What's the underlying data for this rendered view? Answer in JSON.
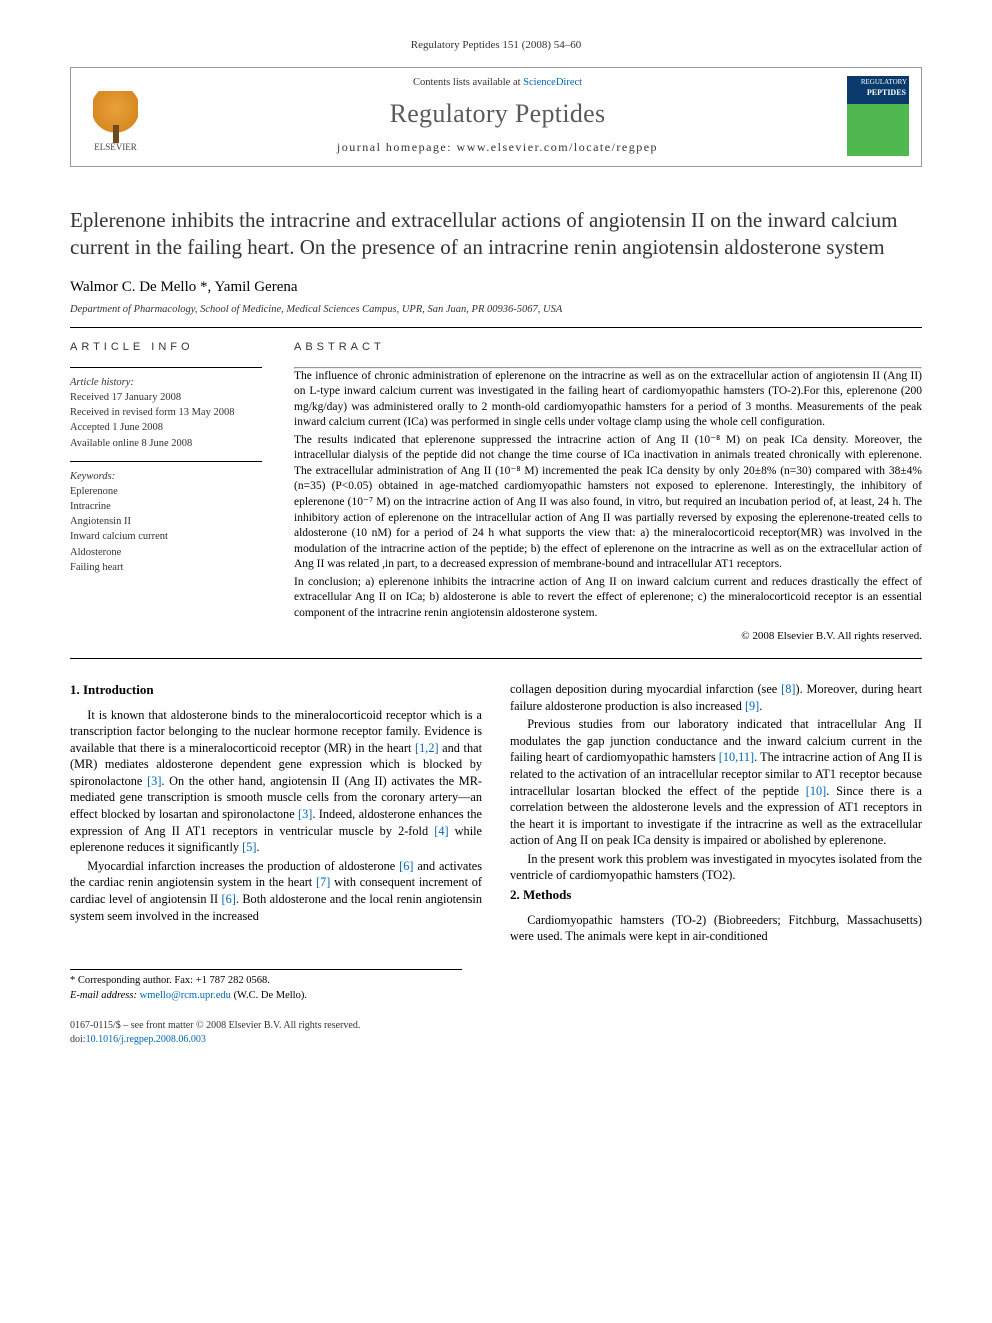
{
  "pageHeader": "Regulatory Peptides 151 (2008) 54–60",
  "journalBox": {
    "contentsLine": "Contents lists available at ",
    "contentsLink": "ScienceDirect",
    "journalName": "Regulatory Peptides",
    "homepageLabel": "journal homepage: www.elsevier.com/locate/regpep",
    "elsevierLabel": "ELSEVIER",
    "coverTopText": "REGULATORY"
  },
  "article": {
    "title": "Eplerenone inhibits the intracrine and extracellular actions of angiotensin II on the inward calcium current in the failing heart. On the presence of an intracrine renin angiotensin aldosterone system",
    "authors": "Walmor C. De Mello *, Yamil Gerena",
    "affiliation": "Department of Pharmacology, School of Medicine, Medical Sciences Campus, UPR, San Juan, PR 00936-5067, USA"
  },
  "info": {
    "heading": "ARTICLE INFO",
    "historyLabel": "Article history:",
    "history": [
      "Received 17 January 2008",
      "Received in revised form 13 May 2008",
      "Accepted 1 June 2008",
      "Available online 8 June 2008"
    ],
    "keywordsLabel": "Keywords:",
    "keywords": [
      "Eplerenone",
      "Intracrine",
      "Angiotensin II",
      "Inward calcium current",
      "Aldosterone",
      "Failing heart"
    ]
  },
  "abstract": {
    "heading": "ABSTRACT",
    "p1": "The influence of chronic administration of eplerenone on the intracrine as well as on the extracellular action of angiotensin II (Ang II) on L-type inward calcium current was investigated in the failing heart of cardiomyopathic hamsters (TO-2).For this, eplerenone (200 mg/kg/day) was administered orally to 2 month-old cardiomyopathic hamsters for a period of 3 months. Measurements of the peak inward calcium current (ICa) was performed in single cells under voltage clamp using the whole cell configuration.",
    "p2": "The results indicated that eplerenone suppressed the intracrine action of Ang II (10⁻⁸ M) on peak ICa density. Moreover, the intracellular dialysis of the peptide did not change the time course of ICa inactivation in animals treated chronically with eplerenone. The extracellular administration of Ang II (10⁻⁸ M) incremented the peak ICa density by only 20±8% (n=30) compared with 38±4% (n=35) (P<0.05) obtained in age-matched cardiomyopathic hamsters not exposed to eplerenone. Interestingly, the inhibitory of eplerenone (10⁻⁷ M) on the intracrine action of Ang II was also found, in vitro, but required an incubation period of, at least, 24 h. The inhibitory action of eplerenone on the intracellular action of Ang II was partially reversed by exposing the eplerenone-treated cells to aldosterone (10 nM) for a period of 24 h what supports the view that: a) the mineralocorticoid receptor(MR) was involved in the modulation of the intracrine action of the peptide; b) the effect of eplerenone on the intracrine as well as on the extracellular action of Ang II was related ,in part, to a decreased expression of membrane-bound and intracellular AT1 receptors.",
    "p3": "In conclusion; a) eplerenone inhibits the intracrine action of Ang II on inward calcium current and reduces drastically the effect of extracellular Ang II on ICa; b) aldosterone is able to revert the effect of eplerenone; c) the mineralocorticoid receptor is an essential component of the intracrine renin angiotensin aldosterone system.",
    "copyright": "© 2008 Elsevier B.V. All rights reserved."
  },
  "body": {
    "sec1Title": "1. Introduction",
    "sec1p1a": "It is known that aldosterone binds to the mineralocorticoid receptor which is a transcription factor belonging to the nuclear hormone receptor family. Evidence is available that there is a mineralocorticoid receptor (MR) in the heart ",
    "ref12": "[1,2]",
    "sec1p1b": " and that (MR) mediates aldosterone dependent gene expression which is blocked by spironolactone ",
    "ref3a": "[3]",
    "sec1p1c": ". On the other hand, angiotensin II (Ang II) activates the MR-mediated gene transcription is smooth muscle cells from the coronary artery—an effect blocked by losartan and spironolactone ",
    "ref3b": "[3]",
    "sec1p1d": ". Indeed, aldosterone enhances the expression of Ang II AT1 receptors in ventricular muscle by 2-fold ",
    "ref4": "[4]",
    "sec1p1e": " while eplerenone reduces it significantly ",
    "ref5": "[5]",
    "sec1p1f": ".",
    "sec1p2a": "Myocardial infarction increases the production of aldosterone ",
    "ref6a": "[6]",
    "sec1p2b": " and activates the cardiac renin angiotensin system in the heart ",
    "ref7": "[7]",
    "sec1p2c": " with consequent increment of cardiac level of angiotensin II ",
    "ref6b": "[6]",
    "sec1p2d": ". Both aldosterone and the local renin angiotensin system seem involved in the increased",
    "sec1p2e": "collagen deposition during myocardial infarction (see ",
    "ref8": "[8]",
    "sec1p2f": "). Moreover, during heart failure aldosterone production is also increased ",
    "ref9": "[9]",
    "sec1p2g": ".",
    "sec1p3a": "Previous studies from our laboratory indicated that intracellular Ang II modulates the gap junction conductance and the inward calcium current in the failing heart of cardiomyopathic hamsters ",
    "ref1011": "[10,11]",
    "sec1p3b": ". The intracrine action of Ang II is related to the activation of an intracellular receptor similar to AT1 receptor because intracellular losartan blocked the effect of the peptide ",
    "ref10": "[10]",
    "sec1p3c": ". Since there is a correlation between the aldosterone levels and the expression of AT1 receptors in the heart it is important to investigate if the intracrine as well as the extracellular action of Ang II on peak ICa density is impaired or abolished by eplerenone.",
    "sec1p4": "In the present work this problem was investigated in myocytes isolated from the ventricle of cardiomyopathic hamsters (TO2).",
    "sec2Title": "2. Methods",
    "sec2p1": "Cardiomyopathic hamsters (TO-2) (Biobreeders; Fitchburg, Massachusetts) were used. The animals were kept in air-conditioned"
  },
  "footnotes": {
    "corr": "* Corresponding author. Fax: +1 787 282 0568.",
    "emailLabel": "E-mail address: ",
    "email": "wmello@rcm.upr.edu",
    "emailTail": " (W.C. De Mello)."
  },
  "bottom": {
    "line1": "0167-0115/$ – see front matter © 2008 Elsevier B.V. All rights reserved.",
    "doiLabel": "doi:",
    "doi": "10.1016/j.regpep.2008.06.003"
  },
  "colors": {
    "link": "#0066b3",
    "text": "#000000",
    "muted": "#333333",
    "rule": "#000000",
    "boxBorder": "#999999",
    "elsevierOrange": "#e8a23a",
    "coverBlue": "#0a3a6b",
    "coverGreen": "#4fb84f"
  },
  "layout": {
    "pageWidth": 992,
    "pageHeight": 1323,
    "columnGap": 28,
    "infoColWidth": 192
  }
}
